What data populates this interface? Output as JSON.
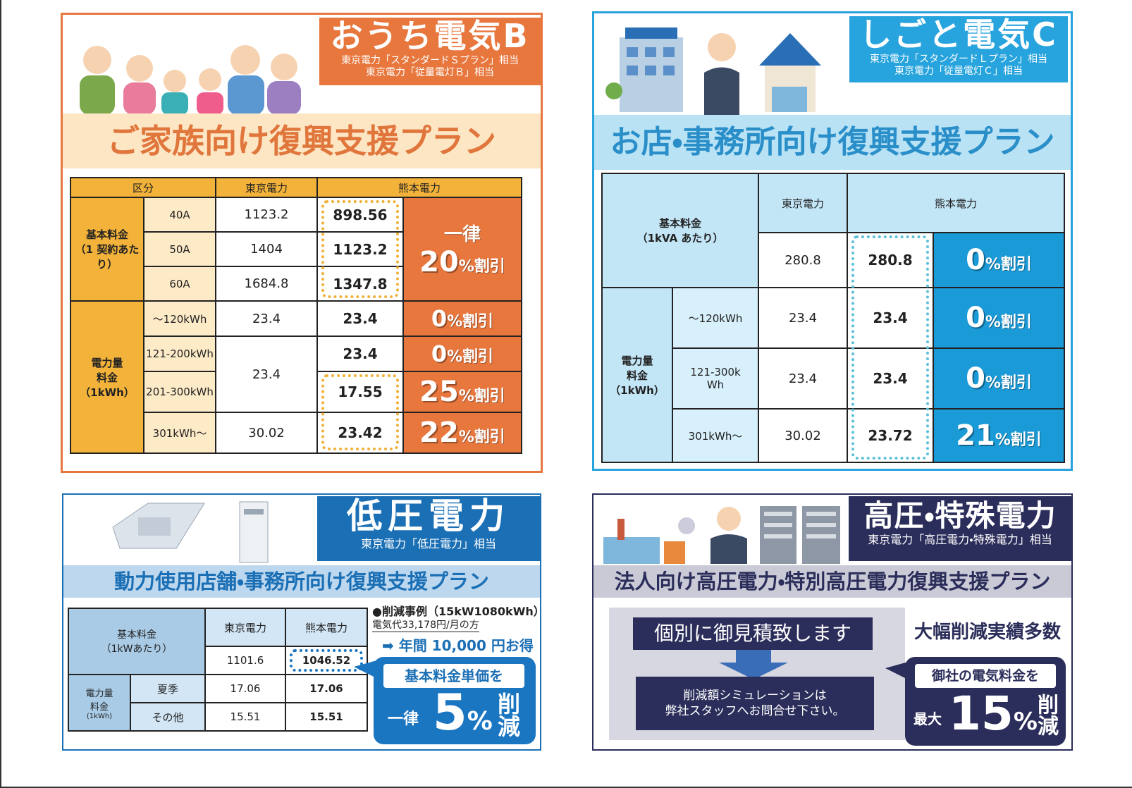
{
  "panel1": {
    "title": "おうち電気B",
    "sub": [
      "東京電力「スタンダードＳプラン」相当",
      "東京電力「従量電灯Ｂ」相当"
    ],
    "plan": "ご家族向け復興支援プラン",
    "table": {
      "head": [
        "区分",
        "東京電力",
        "熊本電力"
      ],
      "basic_label": [
        "基本料金",
        "（1 契約あたり）"
      ],
      "basic_rows": [
        {
          "tier": "40A",
          "tepco": "1123.2",
          "kuma": "898.56"
        },
        {
          "tier": "50A",
          "tepco": "1404",
          "kuma": "1123.2"
        },
        {
          "tier": "60A",
          "tepco": "1684.8",
          "kuma": "1347.8"
        }
      ],
      "basic_discount": {
        "head": "一律",
        "pct": "20",
        "unit": "%割引"
      },
      "energy_label": [
        "電力量",
        "料金",
        "（1kWh）"
      ],
      "energy_rows": [
        {
          "tier": "～120kWh",
          "tepco": "23.4",
          "kuma": "23.4",
          "pct": "0",
          "unit": "%割引"
        },
        {
          "tier": "121-200kWh",
          "tepco": "23.4",
          "kuma": "23.4",
          "pct": "0",
          "unit": "%割引"
        },
        {
          "tier": "201-300kWh",
          "kuma": "17.55",
          "pct": "25",
          "unit": "%割引"
        },
        {
          "tier": "301kWh～",
          "tepco": "30.02",
          "kuma": "23.42",
          "pct": "22",
          "unit": "%割引"
        }
      ]
    }
  },
  "panel2": {
    "title": "しごと電気C",
    "sub": [
      "東京電力「スタンダードＬプラン」相当",
      "東京電力「従量電灯Ｃ」相当"
    ],
    "plan": "お店・事務所向け復興支援プラン",
    "table": {
      "basic_label": [
        "基本料金",
        "（1kVA あたり）"
      ],
      "head": [
        "東京電力",
        "熊本電力"
      ],
      "basic": {
        "tepco": "280.8",
        "kuma": "280.8",
        "pct": "0",
        "unit": "%割引"
      },
      "energy_label": [
        "電力量",
        "料金",
        "（1kWh）"
      ],
      "energy_rows": [
        {
          "tier": "～120kWh",
          "tepco": "23.4",
          "kuma": "23.4",
          "pct": "0",
          "unit": "%割引"
        },
        {
          "tier": "121-300kWh",
          "tepco": "23.4",
          "kuma": "23.4",
          "pct": "0",
          "unit": "%割引"
        },
        {
          "tier": "301kWh～",
          "tepco": "30.02",
          "kuma": "23.72",
          "pct": "21",
          "unit": "%割引"
        }
      ]
    }
  },
  "panel3": {
    "title": "低圧電力",
    "sub": "東京電力「低圧電力」相当",
    "plan": "動力使用店舗・事務所向け復興支援プラン",
    "table": {
      "basic_label": [
        "基本料金",
        "（1kWあたり）"
      ],
      "head": [
        "東京電力",
        "熊本電力"
      ],
      "basic": {
        "tepco": "1101.6",
        "kuma": "1046.52"
      },
      "energy_label": [
        "電力量",
        "料金",
        "(1kWh)"
      ],
      "energy_rows": [
        {
          "season": "夏季",
          "tepco": "17.06",
          "kuma": "17.06"
        },
        {
          "season": "その他",
          "tepco": "15.51",
          "kuma": "15.51"
        }
      ]
    },
    "example": {
      "title": "●削減事例（15kW1080kWh）",
      "cost": "電気代33,178円/月の方",
      "saving": "➡ 年間 10,000 円お得"
    },
    "callout": {
      "head": "基本料金単価を",
      "prefix": "一律",
      "pct": "5",
      "unit": "%",
      "verb": "削減"
    }
  },
  "panel4": {
    "title": "高圧・特殊電力",
    "sub": "東京電力「高圧電力・特殊電力」相当",
    "plan": "法人向け高圧電力・特別高圧電力復興支援プラン",
    "quote": "個別に御見積致します",
    "contact": [
      "削減額シミュレーションは",
      "弊社スタッフへお問合せ下さい。"
    ],
    "record": "大幅削減実績多数",
    "callout": {
      "head": "御社の電気料金を",
      "prefix": "最大",
      "pct": "15",
      "unit": "%",
      "verb": "削減"
    }
  }
}
